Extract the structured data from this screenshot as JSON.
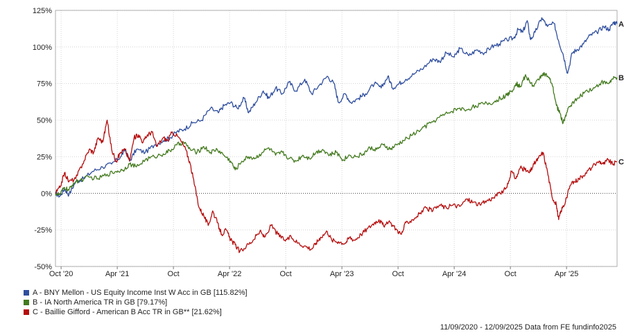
{
  "chart_data": {
    "type": "line",
    "title": "",
    "xlabel": "",
    "ylabel": "",
    "ylim": [
      -50,
      125
    ],
    "y_ticks": [
      -50,
      -25,
      0,
      25,
      50,
      75,
      100,
      125
    ],
    "y_tick_labels": [
      "-50%",
      "-25%",
      "0%",
      "25%",
      "50%",
      "75%",
      "100%",
      "125%"
    ],
    "x_ticks": [
      {
        "t": 0.05,
        "label": "Oct '20"
      },
      {
        "t": 0.55,
        "label": "Apr '21"
      },
      {
        "t": 1.05,
        "label": "Oct"
      },
      {
        "t": 1.55,
        "label": "Apr '22"
      },
      {
        "t": 2.05,
        "label": "Oct"
      },
      {
        "t": 2.55,
        "label": "Apr '23"
      },
      {
        "t": 3.05,
        "label": "Oct"
      },
      {
        "t": 3.55,
        "label": "Apr '24"
      },
      {
        "t": 4.05,
        "label": "Oct"
      },
      {
        "t": 4.55,
        "label": "Apr '25"
      }
    ],
    "x_range": [
      0,
      5.0
    ],
    "grid": true,
    "zero_line": true,
    "legend_position": "bottom-left",
    "series": [
      {
        "name": "A - BNY Mellon - US Equity Income Inst W Acc in GB [115.82%]",
        "end_label": "A",
        "color": "#2f4e9e",
        "points": [
          [
            0.0,
            0
          ],
          [
            0.04,
            -2
          ],
          [
            0.08,
            3
          ],
          [
            0.12,
            -1
          ],
          [
            0.18,
            8
          ],
          [
            0.25,
            10
          ],
          [
            0.33,
            15
          ],
          [
            0.42,
            18
          ],
          [
            0.5,
            20
          ],
          [
            0.58,
            25
          ],
          [
            0.62,
            30
          ],
          [
            0.66,
            22
          ],
          [
            0.72,
            30
          ],
          [
            0.8,
            28
          ],
          [
            0.88,
            33
          ],
          [
            0.96,
            36
          ],
          [
            1.02,
            38
          ],
          [
            1.08,
            42
          ],
          [
            1.15,
            44
          ],
          [
            1.22,
            48
          ],
          [
            1.3,
            50
          ],
          [
            1.38,
            58
          ],
          [
            1.45,
            55
          ],
          [
            1.5,
            60
          ],
          [
            1.56,
            62
          ],
          [
            1.62,
            58
          ],
          [
            1.68,
            65
          ],
          [
            1.72,
            55
          ],
          [
            1.78,
            62
          ],
          [
            1.85,
            70
          ],
          [
            1.9,
            65
          ],
          [
            1.96,
            72
          ],
          [
            2.02,
            68
          ],
          [
            2.08,
            76
          ],
          [
            2.14,
            70
          ],
          [
            2.22,
            78
          ],
          [
            2.28,
            68
          ],
          [
            2.35,
            74
          ],
          [
            2.42,
            80
          ],
          [
            2.48,
            75
          ],
          [
            2.52,
            62
          ],
          [
            2.58,
            68
          ],
          [
            2.63,
            62
          ],
          [
            2.7,
            65
          ],
          [
            2.76,
            68
          ],
          [
            2.84,
            75
          ],
          [
            2.9,
            72
          ],
          [
            2.96,
            80
          ],
          [
            3.0,
            72
          ],
          [
            3.06,
            75
          ],
          [
            3.12,
            78
          ],
          [
            3.2,
            82
          ],
          [
            3.28,
            86
          ],
          [
            3.36,
            92
          ],
          [
            3.42,
            90
          ],
          [
            3.48,
            96
          ],
          [
            3.55,
            93
          ],
          [
            3.6,
            99
          ],
          [
            3.68,
            94
          ],
          [
            3.75,
            98
          ],
          [
            3.82,
            96
          ],
          [
            3.88,
            100
          ],
          [
            3.95,
            102
          ],
          [
            4.02,
            105
          ],
          [
            4.08,
            106
          ],
          [
            4.12,
            112
          ],
          [
            4.16,
            110
          ],
          [
            4.2,
            118
          ],
          [
            4.23,
            105
          ],
          [
            4.27,
            110
          ],
          [
            4.33,
            120
          ],
          [
            4.38,
            114
          ],
          [
            4.44,
            116
          ],
          [
            4.48,
            104
          ],
          [
            4.52,
            95
          ],
          [
            4.56,
            82
          ],
          [
            4.6,
            96
          ],
          [
            4.64,
            98
          ],
          [
            4.7,
            102
          ],
          [
            4.76,
            108
          ],
          [
            4.82,
            110
          ],
          [
            4.88,
            114
          ],
          [
            4.93,
            112
          ],
          [
            4.97,
            117
          ],
          [
            5.0,
            115.8
          ]
        ]
      },
      {
        "name": "B - IA North America TR in GB [79.17%]",
        "end_label": "B",
        "color": "#437a1e",
        "points": [
          [
            0.0,
            0
          ],
          [
            0.04,
            -1
          ],
          [
            0.08,
            4
          ],
          [
            0.12,
            2
          ],
          [
            0.16,
            7
          ],
          [
            0.22,
            9
          ],
          [
            0.3,
            11
          ],
          [
            0.38,
            10
          ],
          [
            0.46,
            13
          ],
          [
            0.54,
            15
          ],
          [
            0.6,
            16
          ],
          [
            0.66,
            20
          ],
          [
            0.72,
            18
          ],
          [
            0.8,
            23
          ],
          [
            0.88,
            25
          ],
          [
            0.96,
            27
          ],
          [
            1.02,
            29
          ],
          [
            1.08,
            33
          ],
          [
            1.14,
            35
          ],
          [
            1.2,
            30
          ],
          [
            1.26,
            28
          ],
          [
            1.32,
            32
          ],
          [
            1.38,
            28
          ],
          [
            1.44,
            30
          ],
          [
            1.5,
            26
          ],
          [
            1.56,
            22
          ],
          [
            1.6,
            16
          ],
          [
            1.66,
            22
          ],
          [
            1.72,
            25
          ],
          [
            1.78,
            24
          ],
          [
            1.84,
            28
          ],
          [
            1.9,
            31
          ],
          [
            1.96,
            26
          ],
          [
            2.02,
            28
          ],
          [
            2.08,
            24
          ],
          [
            2.14,
            22
          ],
          [
            2.2,
            26
          ],
          [
            2.26,
            24
          ],
          [
            2.32,
            28
          ],
          [
            2.38,
            30
          ],
          [
            2.44,
            26
          ],
          [
            2.5,
            28
          ],
          [
            2.56,
            23
          ],
          [
            2.62,
            26
          ],
          [
            2.68,
            25
          ],
          [
            2.74,
            27
          ],
          [
            2.8,
            31
          ],
          [
            2.86,
            30
          ],
          [
            2.92,
            33
          ],
          [
            2.98,
            30
          ],
          [
            3.04,
            33
          ],
          [
            3.1,
            36
          ],
          [
            3.18,
            40
          ],
          [
            3.26,
            44
          ],
          [
            3.34,
            48
          ],
          [
            3.42,
            52
          ],
          [
            3.5,
            55
          ],
          [
            3.58,
            58
          ],
          [
            3.66,
            57
          ],
          [
            3.74,
            60
          ],
          [
            3.82,
            61
          ],
          [
            3.9,
            62
          ],
          [
            3.96,
            65
          ],
          [
            4.02,
            67
          ],
          [
            4.06,
            70
          ],
          [
            4.1,
            75
          ],
          [
            4.14,
            73
          ],
          [
            4.18,
            80
          ],
          [
            4.22,
            77
          ],
          [
            4.26,
            73
          ],
          [
            4.3,
            78
          ],
          [
            4.34,
            82
          ],
          [
            4.38,
            80
          ],
          [
            4.42,
            75
          ],
          [
            4.46,
            60
          ],
          [
            4.49,
            55
          ],
          [
            4.52,
            48
          ],
          [
            4.55,
            55
          ],
          [
            4.6,
            62
          ],
          [
            4.66,
            65
          ],
          [
            4.72,
            70
          ],
          [
            4.8,
            72
          ],
          [
            4.86,
            76
          ],
          [
            4.92,
            75
          ],
          [
            4.96,
            78
          ],
          [
            5.0,
            79.2
          ]
        ]
      },
      {
        "name": "C - Baillie Gifford - American B Acc TR in GB** [21.62%]",
        "end_label": "C",
        "color": "#b50d0d",
        "points": [
          [
            0.0,
            0
          ],
          [
            0.04,
            4
          ],
          [
            0.08,
            14
          ],
          [
            0.12,
            8
          ],
          [
            0.18,
            10
          ],
          [
            0.24,
            20
          ],
          [
            0.3,
            30
          ],
          [
            0.34,
            28
          ],
          [
            0.38,
            38
          ],
          [
            0.42,
            35
          ],
          [
            0.46,
            50
          ],
          [
            0.5,
            30
          ],
          [
            0.54,
            22
          ],
          [
            0.58,
            28
          ],
          [
            0.62,
            30
          ],
          [
            0.66,
            22
          ],
          [
            0.7,
            38
          ],
          [
            0.74,
            40
          ],
          [
            0.78,
            35
          ],
          [
            0.82,
            40
          ],
          [
            0.86,
            42
          ],
          [
            0.9,
            32
          ],
          [
            0.96,
            38
          ],
          [
            1.0,
            36
          ],
          [
            1.04,
            42
          ],
          [
            1.1,
            38
          ],
          [
            1.16,
            30
          ],
          [
            1.2,
            20
          ],
          [
            1.24,
            5
          ],
          [
            1.28,
            -10
          ],
          [
            1.32,
            -15
          ],
          [
            1.36,
            -22
          ],
          [
            1.4,
            -12
          ],
          [
            1.44,
            -20
          ],
          [
            1.48,
            -28
          ],
          [
            1.52,
            -25
          ],
          [
            1.56,
            -32
          ],
          [
            1.6,
            -35
          ],
          [
            1.64,
            -40
          ],
          [
            1.7,
            -36
          ],
          [
            1.76,
            -32
          ],
          [
            1.82,
            -26
          ],
          [
            1.86,
            -30
          ],
          [
            1.92,
            -22
          ],
          [
            1.98,
            -28
          ],
          [
            2.04,
            -32
          ],
          [
            2.1,
            -30
          ],
          [
            2.16,
            -34
          ],
          [
            2.22,
            -36
          ],
          [
            2.28,
            -38
          ],
          [
            2.32,
            -34
          ],
          [
            2.36,
            -30
          ],
          [
            2.42,
            -26
          ],
          [
            2.46,
            -32
          ],
          [
            2.52,
            -33
          ],
          [
            2.58,
            -34
          ],
          [
            2.62,
            -30
          ],
          [
            2.66,
            -32
          ],
          [
            2.72,
            -28
          ],
          [
            2.78,
            -24
          ],
          [
            2.84,
            -20
          ],
          [
            2.88,
            -18
          ],
          [
            2.92,
            -22
          ],
          [
            2.98,
            -20
          ],
          [
            3.04,
            -25
          ],
          [
            3.08,
            -28
          ],
          [
            3.12,
            -20
          ],
          [
            3.18,
            -18
          ],
          [
            3.24,
            -14
          ],
          [
            3.3,
            -10
          ],
          [
            3.36,
            -12
          ],
          [
            3.42,
            -8
          ],
          [
            3.48,
            -10
          ],
          [
            3.54,
            -8
          ],
          [
            3.6,
            -9
          ],
          [
            3.66,
            -4
          ],
          [
            3.72,
            -6
          ],
          [
            3.78,
            -8
          ],
          [
            3.84,
            -5
          ],
          [
            3.9,
            -3
          ],
          [
            3.96,
            0
          ],
          [
            4.02,
            4
          ],
          [
            4.06,
            15
          ],
          [
            4.1,
            10
          ],
          [
            4.14,
            18
          ],
          [
            4.18,
            16
          ],
          [
            4.22,
            14
          ],
          [
            4.26,
            20
          ],
          [
            4.3,
            24
          ],
          [
            4.34,
            28
          ],
          [
            4.38,
            15
          ],
          [
            4.42,
            -2
          ],
          [
            4.46,
            -8
          ],
          [
            4.48,
            -18
          ],
          [
            4.5,
            -12
          ],
          [
            4.54,
            -6
          ],
          [
            4.58,
            5
          ],
          [
            4.62,
            8
          ],
          [
            4.66,
            10
          ],
          [
            4.72,
            14
          ],
          [
            4.78,
            18
          ],
          [
            4.84,
            22
          ],
          [
            4.88,
            20
          ],
          [
            4.92,
            23
          ],
          [
            4.96,
            20
          ],
          [
            5.0,
            21.6
          ]
        ]
      }
    ]
  },
  "footer_text": "11/09/2020 - 12/09/2025 Data from FE fundinfo2025"
}
